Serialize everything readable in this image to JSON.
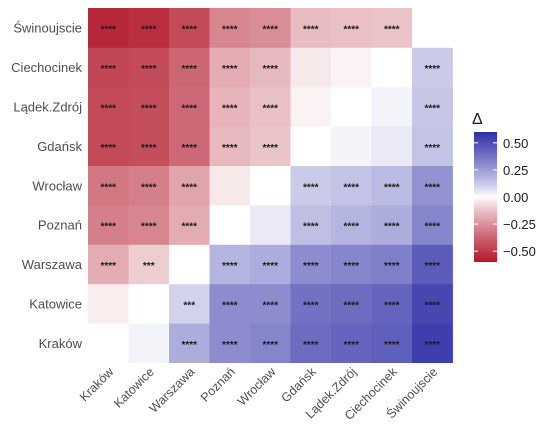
{
  "chart_data": {
    "type": "heatmap",
    "title": "",
    "xlabel": "",
    "ylabel": "",
    "x_categories": [
      "Kraków",
      "Katowice",
      "Warszawa",
      "Poznań",
      "Wrocław",
      "Gdańsk",
      "Lądek.Zdrój",
      "Ciechocinek",
      "Świnoujscie"
    ],
    "y_categories": [
      "Kraków",
      "Katowice",
      "Warszawa",
      "Poznań",
      "Wrocław",
      "Gdańsk",
      "Lądek.Zdrój",
      "Ciechocinek",
      "Świnoujscie"
    ],
    "values": [
      [
        null,
        0.02,
        0.2,
        0.3,
        0.32,
        0.4,
        0.42,
        0.44,
        0.55
      ],
      [
        -0.03,
        null,
        0.1,
        0.3,
        0.3,
        0.38,
        0.4,
        0.42,
        0.52
      ],
      [
        -0.18,
        -0.1,
        null,
        0.18,
        0.2,
        0.3,
        0.32,
        0.34,
        0.45
      ],
      [
        -0.3,
        -0.28,
        -0.18,
        null,
        0.04,
        0.15,
        0.18,
        0.2,
        0.32
      ],
      [
        -0.32,
        -0.3,
        -0.2,
        -0.04,
        null,
        0.12,
        0.14,
        0.16,
        0.28
      ],
      [
        -0.45,
        -0.44,
        -0.36,
        -0.15,
        -0.12,
        null,
        0.02,
        0.04,
        0.14
      ],
      [
        -0.45,
        -0.44,
        -0.36,
        -0.16,
        -0.13,
        -0.02,
        null,
        0.02,
        0.13
      ],
      [
        -0.46,
        -0.45,
        -0.37,
        -0.18,
        -0.15,
        -0.04,
        -0.02,
        null,
        0.12
      ],
      [
        -0.55,
        -0.53,
        -0.45,
        -0.28,
        -0.26,
        -0.14,
        -0.13,
        -0.12,
        null
      ]
    ],
    "labels": [
      [
        "",
        "",
        "****",
        "****",
        "****",
        "****",
        "****",
        "****",
        "****"
      ],
      [
        "",
        "",
        "***",
        "****",
        "****",
        "****",
        "****",
        "****",
        "****"
      ],
      [
        "****",
        "***",
        "",
        "****",
        "****",
        "****",
        "****",
        "****",
        "****"
      ],
      [
        "****",
        "****",
        "****",
        "",
        "",
        "****",
        "****",
        "****",
        "****"
      ],
      [
        "****",
        "****",
        "****",
        "",
        "",
        "****",
        "****",
        "****",
        "****"
      ],
      [
        "****",
        "****",
        "****",
        "****",
        "****",
        "",
        "",
        "",
        "****"
      ],
      [
        "****",
        "****",
        "****",
        "****",
        "****",
        "",
        "",
        "",
        "****"
      ],
      [
        "****",
        "****",
        "****",
        "****",
        "****",
        "",
        "",
        "",
        "****"
      ],
      [
        "****",
        "****",
        "****",
        "****",
        "****",
        "****",
        "****",
        "****",
        ""
      ]
    ],
    "legend": {
      "title": "Δ",
      "placement": "right",
      "ticks": [
        "0.50",
        "0.25",
        "0.00",
        "−0.25",
        "−0.50"
      ],
      "tick_values": [
        0.5,
        0.25,
        0,
        -0.25,
        -0.5
      ],
      "range": [
        -0.6,
        0.6
      ]
    },
    "colors": {
      "low": "#b2182b",
      "mid": "#ffffff",
      "high": "#2f2fa8"
    }
  }
}
